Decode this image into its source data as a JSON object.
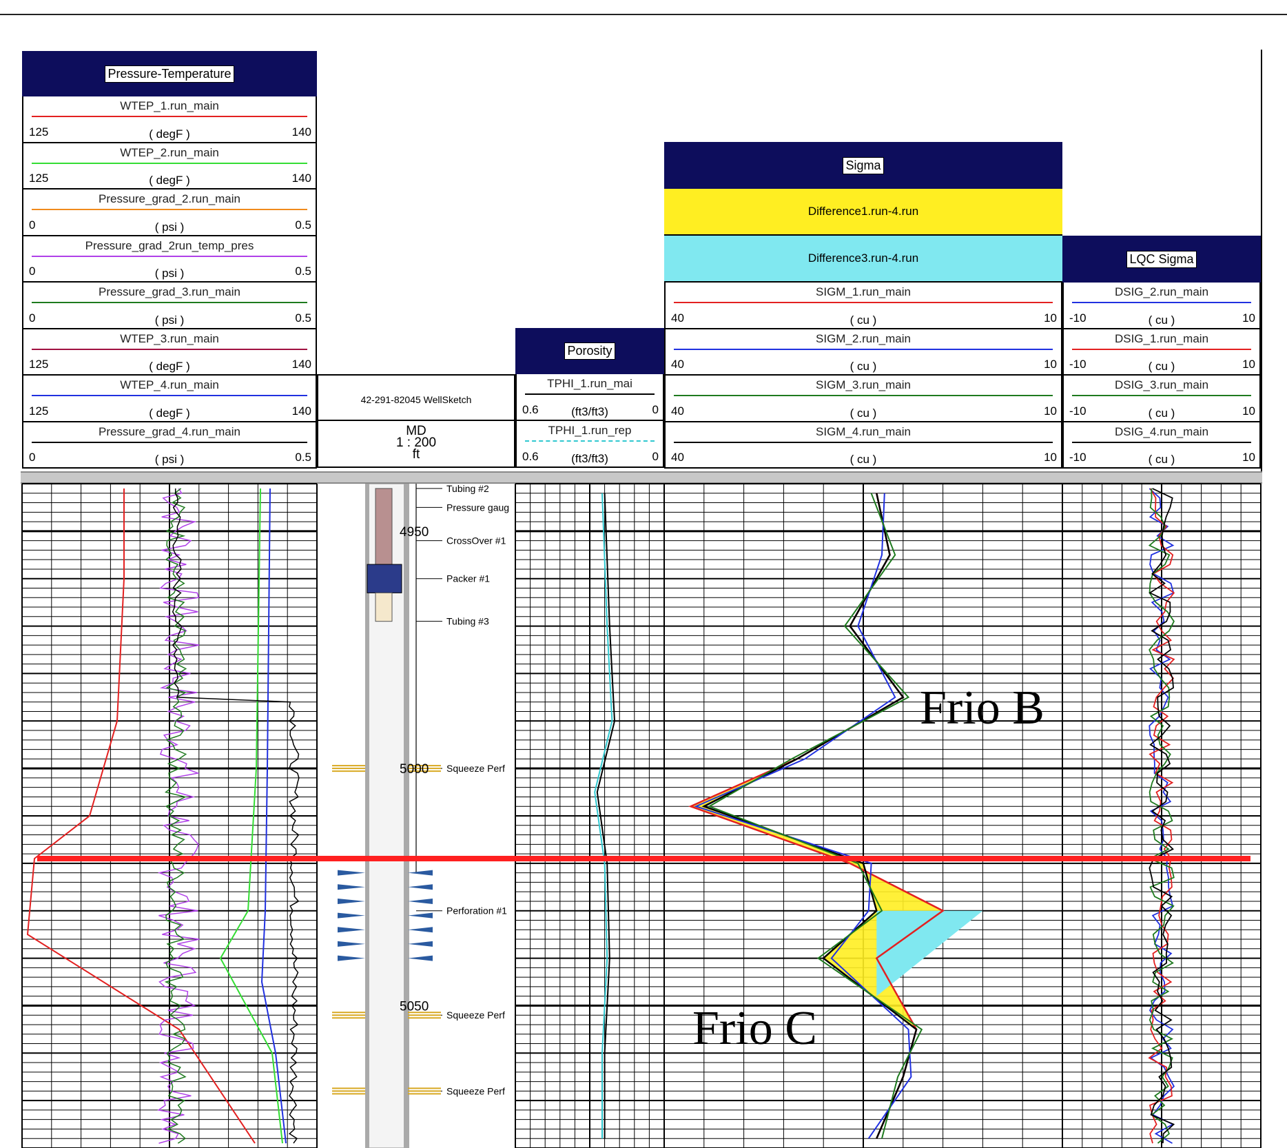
{
  "tracks": {
    "pressure_temperature": {
      "title": "Pressure-Temperature",
      "curves": [
        {
          "name": "WTEP_1.run_main",
          "min": "125",
          "max": "140",
          "unit": "( degF )",
          "color": "#e32020"
        },
        {
          "name": "WTEP_2.run_main",
          "min": "125",
          "max": "140",
          "unit": "( degF )",
          "color": "#33dd33"
        },
        {
          "name": "Pressure_grad_2.run_main",
          "min": "0",
          "max": "0.5",
          "unit": "( psi )",
          "color": "#f08a1c"
        },
        {
          "name": "Pressure_grad_2run_temp_pres",
          "min": "0",
          "max": "0.5",
          "unit": "( psi )",
          "color": "#b040e8"
        },
        {
          "name": "Pressure_grad_3.run_main",
          "min": "0",
          "max": "0.5",
          "unit": "( psi )",
          "color": "#1e7a1e"
        },
        {
          "name": "WTEP_3.run_main",
          "min": "125",
          "max": "140",
          "unit": "( degF )",
          "color": "#a01040"
        },
        {
          "name": "WTEP_4.run_main",
          "min": "125",
          "max": "140",
          "unit": "( degF )",
          "color": "#2030e0"
        },
        {
          "name": "Pressure_grad_4.run_main",
          "min": "0",
          "max": "0.5",
          "unit": "( psi )",
          "color": "#000000"
        }
      ]
    },
    "wellsketch": {
      "id_label": "42-291-82045  WellSketch",
      "depth_label": "MD",
      "scale": "1 : 200",
      "unit": "ft",
      "depths": [
        "4950",
        "5000",
        "5050"
      ],
      "components": [
        "Tubing #2",
        "Pressure gaug",
        "CrossOver #1",
        "Packer #1",
        "Tubing #3",
        "Squeeze Perf",
        "Perforation #1",
        "Squeeze Perf",
        "Squeeze Perf"
      ]
    },
    "porosity": {
      "title": "Porosity",
      "curves": [
        {
          "name": "TPHI_1.run_mai",
          "min": "0.6",
          "max": "0",
          "unit": "(ft3/ft3)",
          "color": "#000000"
        },
        {
          "name": "TPHI_1.run_rep",
          "min": "0.6",
          "max": "0",
          "unit": "(ft3/ft3)",
          "color": "#30c8d0"
        }
      ]
    },
    "sigma": {
      "title": "Sigma",
      "fills": [
        {
          "label": "Difference1.run-4.run",
          "color": "#ffee22"
        },
        {
          "label": "Difference3.run-4.run",
          "color": "#80e8f0"
        }
      ],
      "curves": [
        {
          "name": "SIGM_1.run_main",
          "min": "40",
          "max": "10",
          "unit": "( cu )",
          "color": "#e32020"
        },
        {
          "name": "SIGM_2.run_main",
          "min": "40",
          "max": "10",
          "unit": "( cu )",
          "color": "#2030e0"
        },
        {
          "name": "SIGM_3.run_main",
          "min": "40",
          "max": "10",
          "unit": "( cu )",
          "color": "#1e7a1e"
        },
        {
          "name": "SIGM_4.run_main",
          "min": "40",
          "max": "10",
          "unit": "( cu )",
          "color": "#000000"
        }
      ]
    },
    "lqc_sigma": {
      "title": "LQC Sigma",
      "curves": [
        {
          "name": "DSIG_2.run_main",
          "min": "-10",
          "max": "10",
          "unit": "( cu )",
          "color": "#2030e0"
        },
        {
          "name": "DSIG_1.run_main",
          "min": "-10",
          "max": "10",
          "unit": "( cu )",
          "color": "#e32020"
        },
        {
          "name": "DSIG_3.run_main",
          "min": "-10",
          "max": "10",
          "unit": "( cu )",
          "color": "#1e7a1e"
        },
        {
          "name": "DSIG_4.run_main",
          "min": "-10",
          "max": "10",
          "unit": "( cu )",
          "color": "#000000"
        }
      ]
    }
  },
  "annotations": {
    "zone_upper": "Frio B",
    "zone_lower": "Frio C",
    "contact_line_color": "#ff2020"
  },
  "chart_data": {
    "type": "line",
    "y_axis": "MD (ft)",
    "ylim": [
      4940,
      5080
    ],
    "ticks": [
      4950,
      5000,
      5050
    ],
    "zones": [
      {
        "name": "Frio B",
        "top": 4940,
        "base": 5019
      },
      {
        "name": "Frio C",
        "top": 5019,
        "base": 5080
      }
    ],
    "contact_depth": 5019,
    "sigma_series": [
      {
        "name": "SIGM_1.run_main",
        "depth": [
          4942,
          4955,
          4970,
          4985,
          4998,
          5008,
          5020,
          5030,
          5040,
          5055,
          5065,
          5078
        ],
        "values": [
          24,
          23,
          26,
          22,
          30,
          38,
          26,
          19,
          24,
          21,
          22,
          24
        ]
      },
      {
        "name": "SIGM_4.run_main",
        "depth": [
          4942,
          4955,
          4970,
          4985,
          4998,
          5008,
          5020,
          5030,
          5040,
          5055,
          5065,
          5078
        ],
        "values": [
          24,
          23,
          26,
          22,
          30,
          37,
          25,
          24,
          28,
          21,
          22,
          24
        ]
      }
    ],
    "porosity_series": [
      {
        "name": "TPHI_1.run_mai",
        "depth": [
          4942,
          4970,
          4990,
          5005,
          5020,
          5040,
          5060,
          5078
        ],
        "values": [
          0.24,
          0.22,
          0.2,
          0.27,
          0.23,
          0.22,
          0.24,
          0.24
        ]
      }
    ]
  }
}
